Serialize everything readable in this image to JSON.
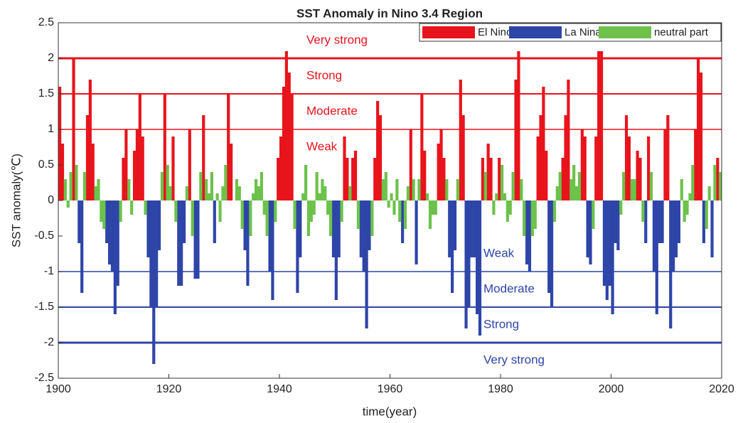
{
  "chart_data": {
    "type": "bar",
    "title": "SST Anomaly in Nino 3.4 Region",
    "x_label": "time(year)",
    "y_label": "SST anomaly(℃)",
    "xlim": [
      1900,
      2020
    ],
    "xticks": [
      1900,
      1920,
      1940,
      1960,
      1980,
      2000,
      2020
    ],
    "ylim": [
      -2.5,
      2.5
    ],
    "yticks": [
      -2.5,
      -2,
      -1.5,
      -1,
      -0.5,
      0,
      0.5,
      1,
      1.5,
      2,
      2.5
    ],
    "grid": false,
    "legend": "top-right",
    "bar_width": 0.5,
    "series": [
      {
        "name": "El Nino",
        "color": "#e8141c",
        "x": [
          1900,
          1900.5,
          1902.5,
          1905,
          1905.5,
          1906,
          1911.5,
          1912,
          1913.5,
          1914,
          1914.5,
          1915,
          1919,
          1920.5,
          1923.5,
          1926,
          1930.5,
          1931,
          1939.5,
          1940,
          1940.5,
          1941,
          1941.5,
          1942,
          1951.5,
          1952,
          1953,
          1953.5,
          1957,
          1957.5,
          1958,
          1963.5,
          1965.5,
          1966,
          1968.5,
          1969,
          1969.5,
          1972.5,
          1973,
          1976.5,
          1977.5,
          1978,
          1979.5,
          1982.5,
          1983,
          1986.5,
          1987,
          1987.5,
          1988,
          1991,
          1991.5,
          1992,
          1994.5,
          1995,
          1997,
          1997.5,
          1998,
          2002.5,
          2003,
          2004.5,
          2005,
          2006.5,
          2009.5,
          2010,
          2015,
          2015.5,
          2016,
          2019
        ],
        "values": [
          1.6,
          0.8,
          2.0,
          1.2,
          1.7,
          0.8,
          0.6,
          1.0,
          0.7,
          1.0,
          1.5,
          0.9,
          1.5,
          0.9,
          1.0,
          1.2,
          1.5,
          0.8,
          0.6,
          0.9,
          1.6,
          2.1,
          1.8,
          1.5,
          0.9,
          0.6,
          0.6,
          0.7,
          0.6,
          1.4,
          1.2,
          1.0,
          1.5,
          0.7,
          0.8,
          1.0,
          0.6,
          1.7,
          1.2,
          0.6,
          0.8,
          0.6,
          0.6,
          1.7,
          2.1,
          0.9,
          1.2,
          1.6,
          0.7,
          0.6,
          1.2,
          1.7,
          1.0,
          0.9,
          0.9,
          2.1,
          2.1,
          1.2,
          0.9,
          0.7,
          0.6,
          0.9,
          1.0,
          1.2,
          1.0,
          2.0,
          1.8,
          0.6
        ]
      },
      {
        "name": "La Nina",
        "color": "#2e45a8",
        "x": [
          1903.5,
          1904,
          1908.5,
          1909,
          1909.5,
          1910,
          1910.5,
          1916,
          1916.5,
          1917,
          1917.5,
          1918,
          1921.5,
          1922,
          1922.5,
          1924.5,
          1925,
          1928,
          1933.5,
          1934,
          1938,
          1938.5,
          1943,
          1943.5,
          1949.5,
          1950,
          1950.5,
          1954.5,
          1955,
          1955.5,
          1956,
          1962,
          1964.5,
          1970.5,
          1971,
          1971.5,
          1973.5,
          1974,
          1974.5,
          1975,
          1975.5,
          1976,
          1984.5,
          1985,
          1988.5,
          1989,
          1995.5,
          1996,
          1998.5,
          1999,
          1999.5,
          2000,
          2000.5,
          2001,
          2006,
          2007.5,
          2008,
          2008.5,
          2009,
          2010.5,
          2011,
          2011.5,
          2012,
          2016.5,
          2018
        ],
        "values": [
          -0.6,
          -1.3,
          -0.6,
          -0.9,
          -1.0,
          -1.6,
          -1.2,
          -0.8,
          -1.5,
          -2.3,
          -1.5,
          -0.7,
          -1.2,
          -1.2,
          -0.6,
          -1.1,
          -1.1,
          -0.6,
          -0.7,
          -1.2,
          -1.0,
          -1.4,
          -1.3,
          -0.8,
          -0.8,
          -1.4,
          -0.8,
          -0.8,
          -1.0,
          -1.8,
          -0.7,
          -0.6,
          -0.9,
          -0.8,
          -1.3,
          -0.7,
          -1.8,
          -1.5,
          -0.8,
          -0.8,
          -1.6,
          -1.9,
          -0.9,
          -1.0,
          -1.3,
          -1.5,
          -0.8,
          -0.9,
          -1.2,
          -1.4,
          -1.2,
          -1.6,
          -0.6,
          -0.7,
          -0.6,
          -1.0,
          -1.6,
          -0.6,
          -0.6,
          -1.8,
          -1.0,
          -0.8,
          -0.6,
          -0.6,
          -0.8
        ]
      },
      {
        "name": "neutral part",
        "color": "#6cc24a",
        "x": [
          1901,
          1901.5,
          1902,
          1903,
          1904.5,
          1906.5,
          1907,
          1907.5,
          1908,
          1911,
          1912.5,
          1913,
          1915.5,
          1918.5,
          1919.5,
          1920,
          1921,
          1923,
          1924,
          1925.5,
          1926.5,
          1927,
          1927.5,
          1928.5,
          1929,
          1929.5,
          1930,
          1931.5,
          1932,
          1932.5,
          1933,
          1934.5,
          1935,
          1935.5,
          1936,
          1936.5,
          1937,
          1937.5,
          1939,
          1942.5,
          1944,
          1944.5,
          1945,
          1945.5,
          1946,
          1946.5,
          1947,
          1947.5,
          1948,
          1948.5,
          1949,
          1951,
          1952.5,
          1954,
          1956.5,
          1958.5,
          1959,
          1959.5,
          1960,
          1960.5,
          1961,
          1961.5,
          1962.5,
          1963,
          1964,
          1965,
          1966.5,
          1967,
          1967.5,
          1968,
          1970,
          1972,
          1977,
          1978.5,
          1979,
          1980,
          1980.5,
          1981,
          1981.5,
          1982,
          1983.5,
          1984,
          1985.5,
          1986,
          1989.5,
          1990,
          1990.5,
          1992.5,
          1993,
          1993.5,
          1994,
          1996.5,
          2001.5,
          2002,
          2003.5,
          2004,
          2005.5,
          2007,
          2012.5,
          2013,
          2013.5,
          2014,
          2014.5,
          2017,
          2017.5,
          2018.5,
          2019.5
        ],
        "values": [
          0.3,
          -0.1,
          0.4,
          0.5,
          0.4,
          0.2,
          0.3,
          -0.3,
          -0.4,
          -0.3,
          0.3,
          -0.2,
          -0.2,
          0.4,
          0.5,
          0.2,
          -0.3,
          0.2,
          -0.5,
          0.4,
          0.3,
          0.1,
          0.4,
          0.1,
          -0.3,
          0.2,
          0.5,
          0.0,
          0.3,
          0.2,
          -0.4,
          -0.5,
          0.1,
          0.3,
          0.2,
          0.4,
          -0.2,
          -0.5,
          -0.3,
          -0.4,
          0.1,
          0.5,
          -0.5,
          -0.3,
          -0.2,
          0.4,
          0.1,
          0.3,
          0.2,
          -0.2,
          -0.5,
          -0.3,
          0.2,
          -0.4,
          -0.5,
          0.3,
          0.4,
          -0.1,
          0.1,
          -0.2,
          0.3,
          -0.3,
          -0.4,
          0.2,
          0.3,
          0.3,
          0.1,
          -0.4,
          -0.2,
          -0.2,
          0.3,
          0.3,
          0.4,
          -0.2,
          0.1,
          0.5,
          0.1,
          -0.3,
          -0.2,
          0.4,
          0.3,
          -0.5,
          -0.5,
          -0.4,
          -0.3,
          0.2,
          0.4,
          0.3,
          0.5,
          0.2,
          0.4,
          -0.4,
          -0.2,
          0.4,
          0.3,
          0.3,
          -0.3,
          0.4,
          0.3,
          -0.3,
          -0.2,
          0.1,
          0.5,
          -0.4,
          0.2,
          0.5,
          0.4
        ]
      }
    ],
    "ref_lines": [
      {
        "value": 2,
        "color": "#e8141c",
        "width": 3
      },
      {
        "value": 1.5,
        "color": "#e8141c",
        "width": 2
      },
      {
        "value": 1,
        "color": "#e8141c",
        "width": 1.5
      },
      {
        "value": -1,
        "color": "#2e45a8",
        "width": 1.5
      },
      {
        "value": -1.5,
        "color": "#2e45a8",
        "width": 2
      },
      {
        "value": -2,
        "color": "#2e45a8",
        "width": 3
      }
    ],
    "level_labels": [
      {
        "text": "Very strong",
        "color": "#e8141c",
        "between": [
          2,
          2.5
        ]
      },
      {
        "text": "Strong",
        "color": "#e8141c",
        "between": [
          1.5,
          2
        ]
      },
      {
        "text": "Moderate",
        "color": "#e8141c",
        "between": [
          1,
          1.5
        ]
      },
      {
        "text": "Weak",
        "color": "#e8141c",
        "between": [
          0.5,
          1
        ]
      },
      {
        "text": "Weak",
        "color": "#2e45a8",
        "between": [
          -0.5,
          -1
        ]
      },
      {
        "text": "Moderate",
        "color": "#2e45a8",
        "between": [
          -1,
          -1.5
        ]
      },
      {
        "text": "Strong",
        "color": "#2e45a8",
        "between": [
          -1.5,
          -2
        ]
      },
      {
        "text": "Very strong",
        "color": "#2e45a8",
        "between": [
          -2,
          -2.5
        ]
      }
    ]
  }
}
